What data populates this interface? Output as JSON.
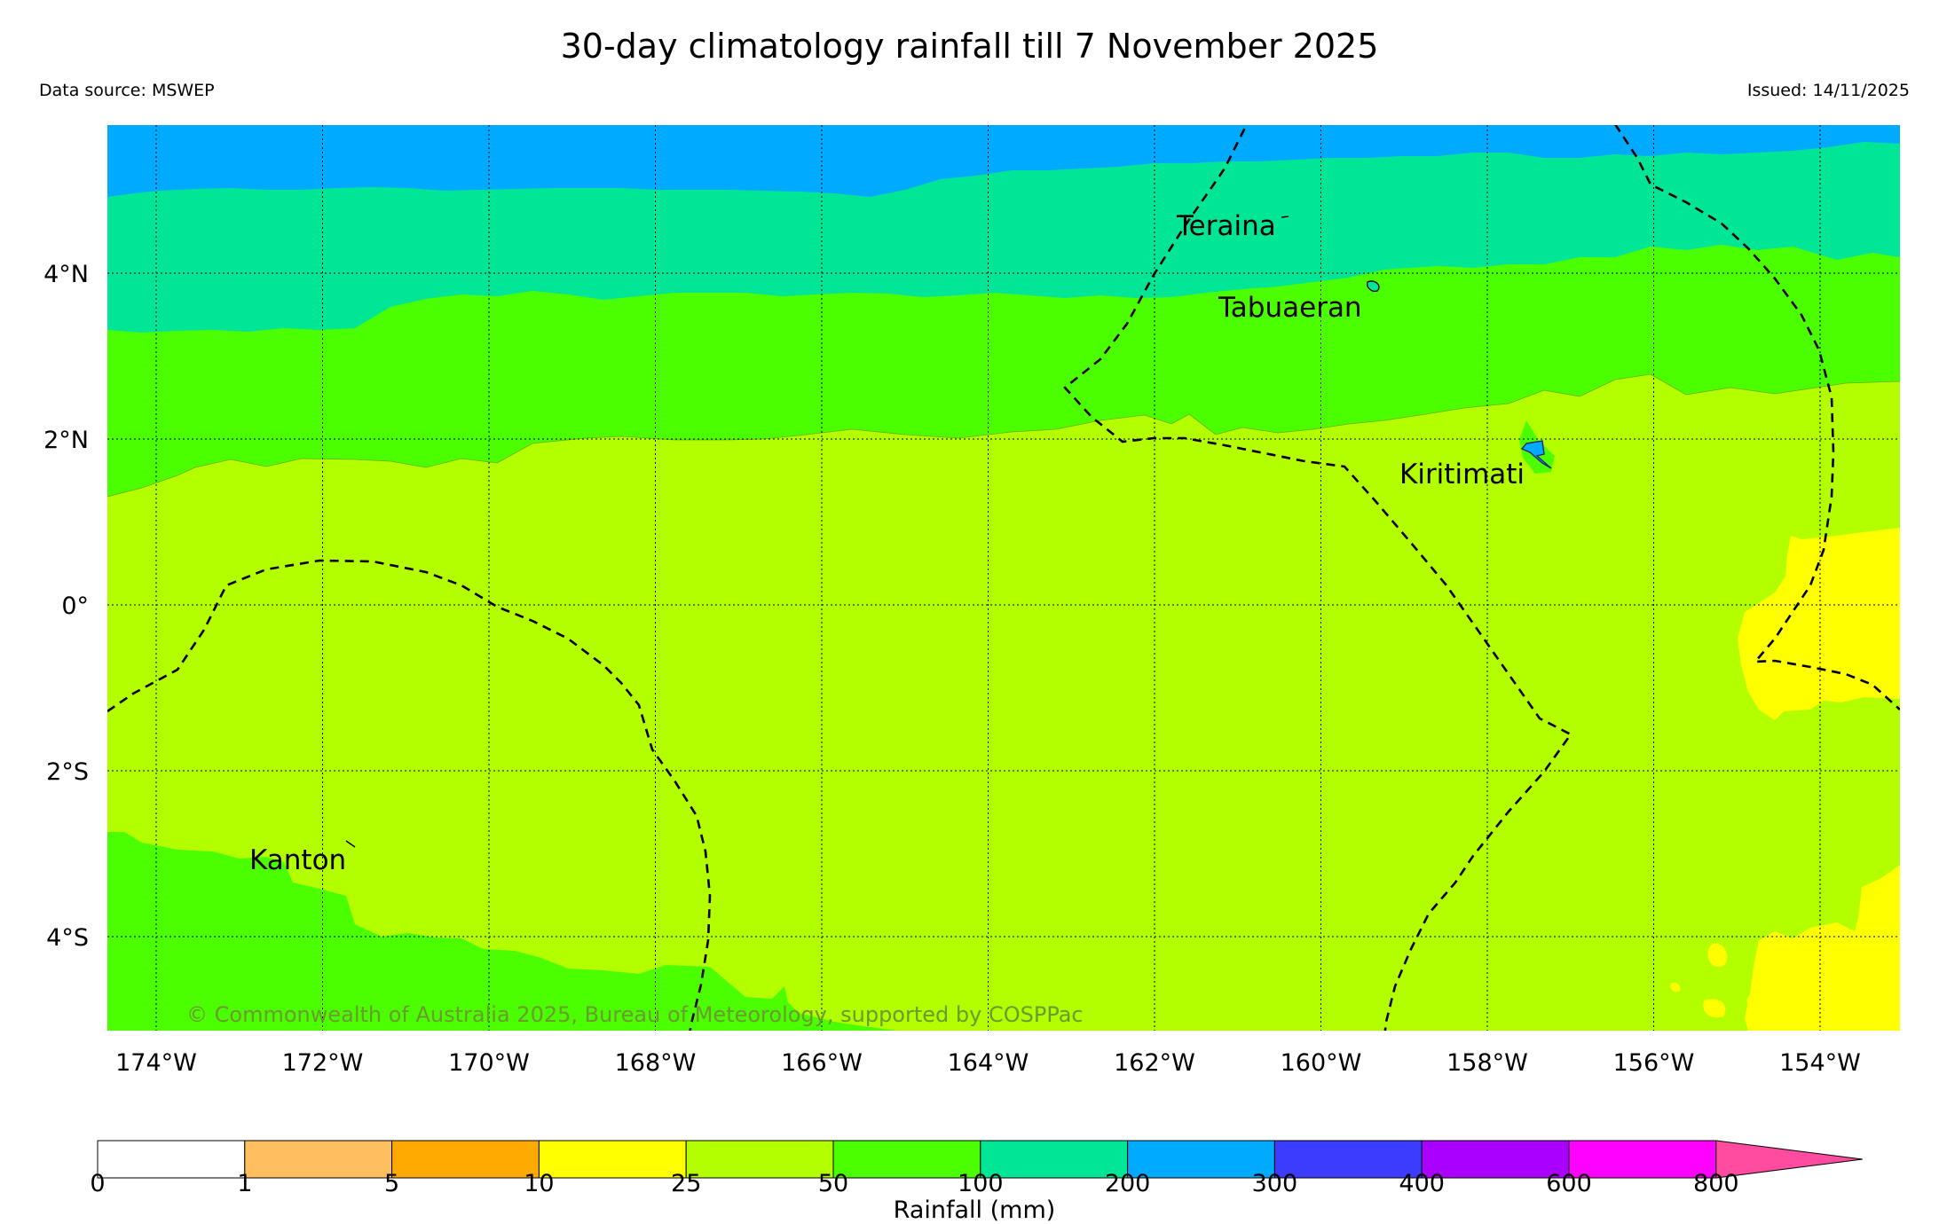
{
  "header": {
    "title": "30-day climatology rainfall till 7 November 2025",
    "data_source": "Data source: MSWEP",
    "issued": "Issued: 14/11/2025"
  },
  "map": {
    "lon_labels": [
      "174°W",
      "172°W",
      "170°W",
      "168°W",
      "166°W",
      "164°W",
      "162°W",
      "160°W",
      "158°W",
      "156°W",
      "154°W"
    ],
    "lat_labels": [
      "4°N",
      "2°N",
      "0°",
      "2°S",
      "4°S"
    ],
    "places": {
      "teraina": "Teraina",
      "tabuaeran": "Tabuaeran",
      "kiritimati": "Kiritimati",
      "kanton": "Kanton"
    },
    "copyright": "© Commonwealth of Australia 2025, Bureau of Meteorology, supported by COSPPac",
    "colors": {
      "c0_1": "#ffffff",
      "c1_5": "#ffbf5f",
      "c5_10": "#ffaa00",
      "c10_25": "#ffff00",
      "c25_50": "#b3ff00",
      "c50_100": "#4cff00",
      "c100_200": "#00e696",
      "c200_300": "#00aaff",
      "c300_400": "#3c3cff",
      "c400_600": "#aa00ff",
      "c600_800": "#ff00ff",
      "c800_plus": "#ff4ba0"
    }
  },
  "colorbar": {
    "ticks": [
      "0",
      "1",
      "5",
      "10",
      "25",
      "50",
      "100",
      "200",
      "300",
      "400",
      "600",
      "800"
    ],
    "label": "Rainfall (mm)"
  }
}
